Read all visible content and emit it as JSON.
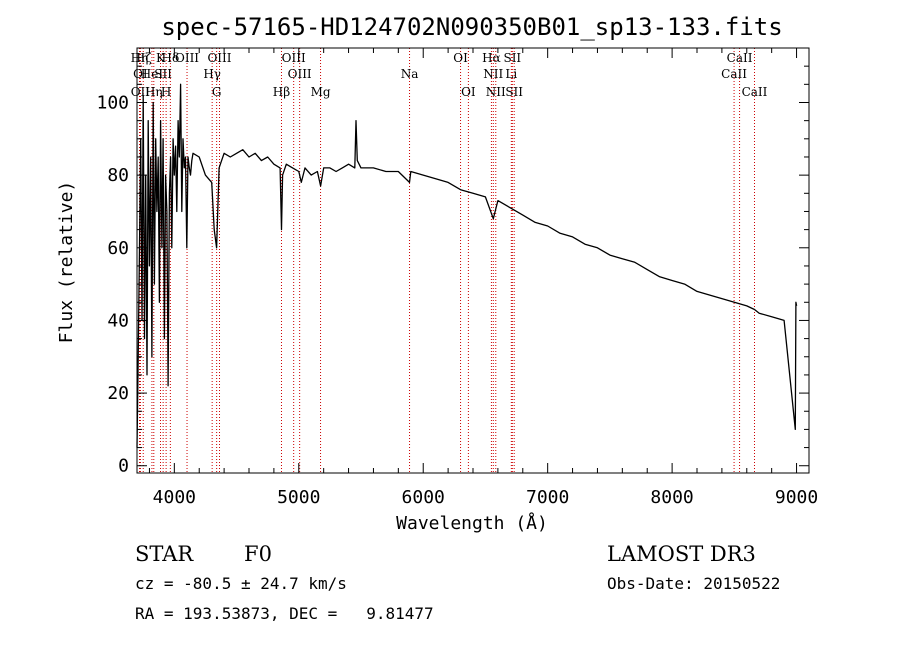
{
  "chart_data": {
    "type": "line",
    "title": "spec-57165-HD124702N090350B01_sp13-133.fits",
    "xlabel": "Wavelength (Å)",
    "ylabel": "Flux (relative)",
    "xlim": [
      3700,
      9100
    ],
    "ylim": [
      -2,
      115
    ],
    "x_ticks": [
      4000,
      5000,
      6000,
      7000,
      8000,
      9000
    ],
    "y_ticks": [
      0,
      20,
      40,
      60,
      80,
      100
    ],
    "grid": false,
    "series": [
      {
        "name": "flux",
        "x": [
          3700,
          3710,
          3720,
          3730,
          3740,
          3750,
          3760,
          3770,
          3780,
          3790,
          3800,
          3810,
          3820,
          3830,
          3840,
          3850,
          3860,
          3870,
          3880,
          3890,
          3900,
          3910,
          3920,
          3930,
          3940,
          3950,
          3960,
          3970,
          3980,
          3990,
          4000,
          4010,
          4020,
          4030,
          4040,
          4050,
          4060,
          4070,
          4080,
          4090,
          4100,
          4110,
          4120,
          4130,
          4140,
          4150,
          4200,
          4250,
          4300,
          4320,
          4340,
          4360,
          4380,
          4400,
          4450,
          4500,
          4550,
          4600,
          4650,
          4700,
          4750,
          4800,
          4850,
          4861,
          4870,
          4900,
          4950,
          5000,
          5020,
          5050,
          5100,
          5150,
          5175,
          5200,
          5250,
          5300,
          5350,
          5400,
          5450,
          5460,
          5470,
          5500,
          5600,
          5700,
          5800,
          5890,
          5900,
          6000,
          6100,
          6200,
          6300,
          6400,
          6500,
          6563,
          6600,
          6700,
          6800,
          6900,
          7000,
          7100,
          7200,
          7300,
          7400,
          7500,
          7600,
          7700,
          7800,
          7900,
          8000,
          8100,
          8200,
          8300,
          8400,
          8500,
          8600,
          8662,
          8700,
          8800,
          8900,
          8990,
          8995,
          9000
        ],
        "values": [
          5,
          30,
          60,
          90,
          40,
          102,
          35,
          80,
          25,
          95,
          55,
          85,
          30,
          100,
          50,
          90,
          70,
          85,
          45,
          95,
          60,
          90,
          35,
          80,
          70,
          22,
          75,
          85,
          60,
          90,
          80,
          88,
          70,
          95,
          85,
          105,
          70,
          90,
          82,
          85,
          60,
          85,
          82,
          80,
          84,
          86,
          85,
          80,
          78,
          65,
          60,
          82,
          84,
          86,
          85,
          86,
          87,
          85,
          86,
          84,
          85,
          83,
          82,
          65,
          80,
          83,
          82,
          81,
          78,
          82,
          80,
          81,
          77,
          82,
          82,
          81,
          82,
          83,
          82,
          95,
          84,
          82,
          82,
          81,
          81,
          78,
          81,
          80,
          79,
          78,
          76,
          75,
          74,
          68,
          73,
          71,
          69,
          67,
          66,
          64,
          63,
          61,
          60,
          58,
          57,
          56,
          54,
          52,
          51,
          50,
          48,
          47,
          46,
          45,
          44,
          43,
          42,
          41,
          40,
          10,
          45,
          44
        ]
      }
    ],
    "spectral_lines": [
      {
        "label": "Hη",
        "x": 3720,
        "row": 1
      },
      {
        "label": "OII",
        "x": 3727,
        "row": 3
      },
      {
        "label": "OI",
        "x": 3727,
        "row": 2
      },
      {
        "label": "Hζ",
        "x": 3750,
        "row": 1
      },
      {
        "label": "HeI",
        "x": 3820,
        "row": 2
      },
      {
        "label": "Hη",
        "x": 3835,
        "row": 3
      },
      {
        "label": "K",
        "x": 3889,
        "row": 1
      },
      {
        "label": "SII",
        "x": 3910,
        "row": 2
      },
      {
        "label": "H",
        "x": 3934,
        "row": 3
      },
      {
        "label": "Hδ",
        "x": 3968,
        "row": 1
      },
      {
        "label": "OIII",
        "x": 4102,
        "row": 1
      },
      {
        "label": "Hγ",
        "x": 4304,
        "row": 2
      },
      {
        "label": "G",
        "x": 4340,
        "row": 3
      },
      {
        "label": "OIII",
        "x": 4363,
        "row": 1
      },
      {
        "label": "Hβ",
        "x": 4861,
        "row": 3
      },
      {
        "label": "OIII",
        "x": 4959,
        "row": 1
      },
      {
        "label": "OIII",
        "x": 5007,
        "row": 2
      },
      {
        "label": "Mg",
        "x": 5175,
        "row": 3
      },
      {
        "label": "Na",
        "x": 5890,
        "row": 2
      },
      {
        "label": "OI",
        "x": 6300,
        "row": 1
      },
      {
        "label": "OI",
        "x": 6363,
        "row": 3
      },
      {
        "label": "Hα",
        "x": 6548,
        "row": 1
      },
      {
        "label": "NII",
        "x": 6563,
        "row": 2
      },
      {
        "label": "NII",
        "x": 6583,
        "row": 3
      },
      {
        "label": "SII",
        "x": 6716,
        "row": 1
      },
      {
        "label": "Li",
        "x": 6708,
        "row": 2
      },
      {
        "label": "SII",
        "x": 6731,
        "row": 3
      },
      {
        "label": "CaII",
        "x": 8498,
        "row": 2
      },
      {
        "label": "CaII",
        "x": 8542,
        "row": 1
      },
      {
        "label": "CaII",
        "x": 8662,
        "row": 3
      }
    ]
  },
  "info": {
    "object_class": "STAR",
    "subclass": "F0",
    "survey": "LAMOST DR3",
    "redshift": "cz = -80.5 ± 24.7 km/s",
    "obs_date": "Obs-Date: 20150522",
    "coords": "RA = 193.53873, DEC =   9.81477"
  },
  "colors": {
    "line_marker": "#cc0000",
    "spectrum": "#000000",
    "axis": "#000000"
  }
}
